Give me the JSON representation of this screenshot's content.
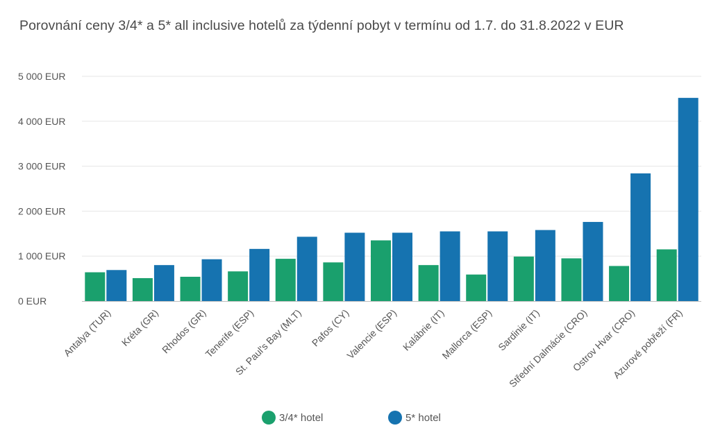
{
  "chart_data": {
    "type": "bar",
    "title": "Porovnání ceny 3/4* a 5* all inclusive hotelů za týdenní pobyt v termínu od 1.7. do 31.8.2022 v EUR",
    "xlabel": "",
    "ylabel": "",
    "ylim": [
      0,
      5000
    ],
    "y_ticks": [
      0,
      1000,
      2000,
      3000,
      4000,
      5000
    ],
    "y_tick_labels": [
      "0  EUR",
      "1 000  EUR",
      "2 000  EUR",
      "3 000  EUR",
      "4 000  EUR",
      "5 000  EUR"
    ],
    "grid": true,
    "legend_position": "bottom-center",
    "categories": [
      "Antalya (TUR)",
      "Kréta (GR)",
      "Rhodos (GR)",
      "Tenerife (ESP)",
      "St. Paul's Bay (MLT)",
      "Pafos (CY)",
      "Valencie (ESP)",
      "Kalábrie (IT)",
      "Mallorca (ESP)",
      "Sardinie (IT)",
      "Střední Dalmácie (CRO)",
      "Ostrov Hvar (CRO)",
      "Azurové pobřeží (FR)"
    ],
    "series": [
      {
        "name": "3/4* hotel",
        "color": "#1aa06d",
        "values": [
          640,
          510,
          540,
          660,
          940,
          860,
          1350,
          800,
          590,
          990,
          950,
          780,
          1150
        ]
      },
      {
        "name": "5* hotel",
        "color": "#1673b0",
        "values": [
          690,
          800,
          930,
          1160,
          1430,
          1520,
          1520,
          1550,
          1550,
          1580,
          1760,
          2840,
          4520
        ]
      }
    ]
  }
}
